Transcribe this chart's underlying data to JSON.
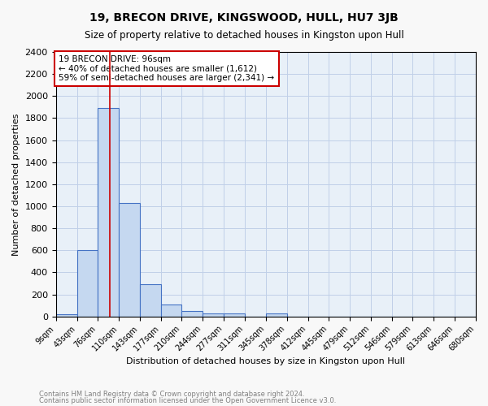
{
  "title": "19, BRECON DRIVE, KINGSWOOD, HULL, HU7 3JB",
  "subtitle": "Size of property relative to detached houses in Kingston upon Hull",
  "xlabel": "Distribution of detached houses by size in Kingston upon Hull",
  "ylabel": "Number of detached properties",
  "bin_labels": [
    "9sqm",
    "43sqm",
    "76sqm",
    "110sqm",
    "143sqm",
    "177sqm",
    "210sqm",
    "244sqm",
    "277sqm",
    "311sqm",
    "345sqm",
    "378sqm",
    "412sqm",
    "445sqm",
    "479sqm",
    "512sqm",
    "546sqm",
    "579sqm",
    "613sqm",
    "646sqm",
    "680sqm"
  ],
  "bar_heights": [
    20,
    600,
    1890,
    1030,
    295,
    110,
    48,
    25,
    25,
    0,
    25,
    0,
    0,
    0,
    0,
    0,
    0,
    0,
    0,
    0,
    0
  ],
  "bar_color": "#c5d8f0",
  "bar_edge_color": "#4472c4",
  "grid_color": "#c0d0e8",
  "background_color": "#e8f0f8",
  "property_line_x": 96,
  "annotation_text": "19 BRECON DRIVE: 96sqm\n← 40% of detached houses are smaller (1,612)\n59% of semi-detached houses are larger (2,341) →",
  "annotation_box_color": "#ffffff",
  "annotation_box_edge_color": "#cc0000",
  "property_line_color": "#cc0000",
  "ylim": [
    0,
    2400
  ],
  "yticks": [
    0,
    200,
    400,
    600,
    800,
    1000,
    1200,
    1400,
    1600,
    1800,
    2000,
    2200,
    2400
  ],
  "footnote_line1": "Contains HM Land Registry data © Crown copyright and database right 2024.",
  "footnote_line2": "Contains public sector information licensed under the Open Government Licence v3.0.",
  "bin_edges": [
    9,
    43,
    76,
    110,
    143,
    177,
    210,
    244,
    277,
    311,
    345,
    378,
    412,
    445,
    479,
    512,
    546,
    579,
    613,
    646,
    680
  ]
}
